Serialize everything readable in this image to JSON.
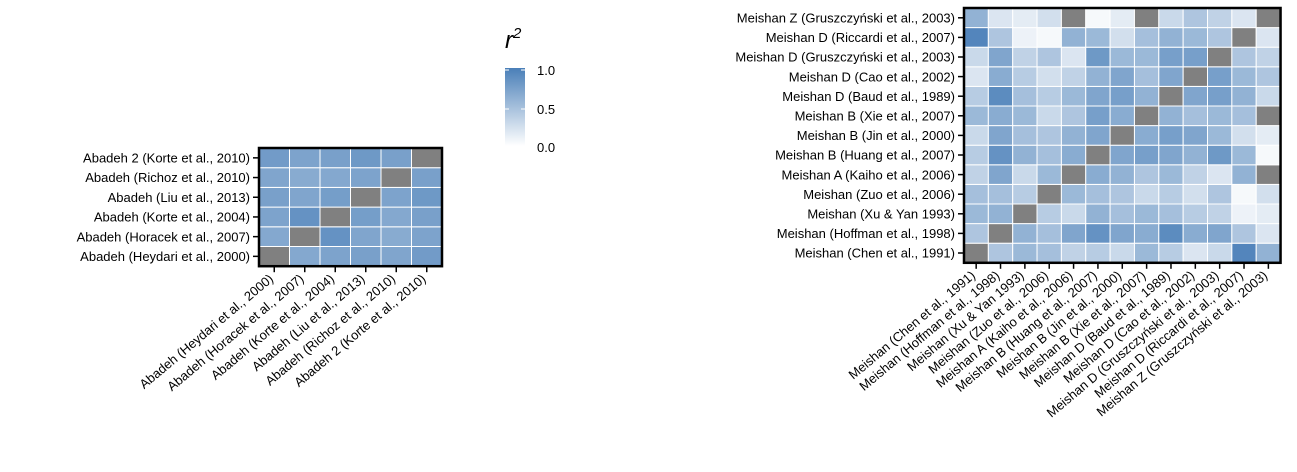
{
  "legend": {
    "title_base": "r",
    "title_sup": "2",
    "ticks": [
      "1.0",
      "0.5",
      "0.0"
    ],
    "color_low": "#ffffff",
    "color_high": "#4a7fb8",
    "diag_color": "#808080"
  },
  "chart_data": [
    {
      "type": "heatmap",
      "title": "",
      "xlabel": "",
      "ylabel": "",
      "value_range": [
        0,
        1
      ],
      "legend_placement": "right",
      "labels": [
        "Abadeh (Heydari et al., 2000)",
        "Abadeh (Horacek et al., 2007)",
        "Abadeh (Korte et al., 2004)",
        "Abadeh (Liu et al., 2013)",
        "Abadeh (Richoz et al., 2010)",
        "Abadeh 2 (Korte et al., 2010)"
      ],
      "values": [
        [
          null,
          0.68,
          0.72,
          0.74,
          0.7,
          0.78
        ],
        [
          0.68,
          null,
          0.85,
          0.7,
          0.66,
          0.72
        ],
        [
          0.72,
          0.85,
          null,
          0.76,
          0.68,
          0.74
        ],
        [
          0.74,
          0.7,
          0.76,
          null,
          0.72,
          0.8
        ],
        [
          0.7,
          0.66,
          0.68,
          0.72,
          null,
          0.74
        ],
        [
          0.78,
          0.72,
          0.74,
          0.8,
          0.74,
          null
        ]
      ]
    },
    {
      "type": "heatmap",
      "title": "",
      "xlabel": "",
      "ylabel": "",
      "value_range": [
        0,
        1
      ],
      "labels": [
        "Meishan (Chen et al., 1991)",
        "Meishan (Hoffman et al., 1998)",
        "Meishan (Xu & Yan 1993)",
        "Meishan (Zuo  et al., 2006)",
        "Meishan A (Kaiho et al., 2006)",
        "Meishan B (Huang et al., 2007)",
        "Meishan B (Jin et al., 2000)",
        "Meishan B (Xie et al., 2007)",
        "Meishan D (Baud et al., 1989)",
        "Meishan D (Cao et al., 2002)",
        "Meishan D (Gruszczyński et al., 2003)",
        "Meishan D (Riccardi et al., 2007)",
        "Meishan Z (Gruszczyński et al., 2003)"
      ],
      "values": [
        [
          null,
          0.45,
          0.55,
          0.5,
          0.35,
          0.4,
          0.3,
          0.55,
          0.4,
          0.2,
          0.3,
          0.95,
          0.6
        ],
        [
          0.45,
          null,
          0.6,
          0.5,
          0.7,
          0.85,
          0.7,
          0.65,
          0.9,
          0.65,
          0.7,
          0.45,
          0.2
        ],
        [
          0.55,
          0.6,
          null,
          0.4,
          0.3,
          0.6,
          0.5,
          0.55,
          0.5,
          0.4,
          0.35,
          0.1,
          0.15
        ],
        [
          0.5,
          0.5,
          0.4,
          null,
          0.55,
          0.5,
          0.45,
          0.3,
          0.4,
          0.25,
          0.45,
          0.05,
          0.25
        ],
        [
          0.35,
          0.7,
          0.3,
          0.55,
          null,
          0.65,
          0.6,
          0.45,
          0.55,
          0.35,
          0.2,
          0.6,
          null
        ],
        [
          0.4,
          0.85,
          0.6,
          0.5,
          0.65,
          null,
          0.7,
          0.75,
          0.7,
          0.6,
          0.8,
          0.55,
          0.05
        ],
        [
          0.3,
          0.7,
          0.5,
          0.45,
          0.6,
          0.7,
          null,
          0.65,
          0.75,
          0.7,
          0.55,
          0.25,
          0.15
        ],
        [
          0.55,
          0.65,
          0.55,
          0.3,
          0.45,
          0.75,
          0.65,
          null,
          0.6,
          0.5,
          0.55,
          0.5,
          null
        ],
        [
          0.4,
          0.9,
          0.5,
          0.4,
          0.55,
          0.7,
          0.75,
          0.6,
          null,
          0.7,
          0.75,
          0.6,
          0.3
        ],
        [
          0.2,
          0.65,
          0.4,
          0.25,
          0.35,
          0.6,
          0.7,
          0.5,
          0.7,
          null,
          0.75,
          0.55,
          0.45
        ],
        [
          0.3,
          0.7,
          0.35,
          0.45,
          0.2,
          0.8,
          0.55,
          0.55,
          0.75,
          0.75,
          null,
          0.45,
          0.35
        ],
        [
          0.95,
          0.45,
          0.1,
          0.05,
          0.6,
          0.55,
          0.25,
          0.5,
          0.6,
          0.55,
          0.45,
          null,
          0.2
        ],
        [
          0.6,
          0.2,
          0.15,
          0.25,
          null,
          0.05,
          0.15,
          null,
          0.3,
          0.45,
          0.35,
          0.2,
          null
        ]
      ]
    }
  ]
}
